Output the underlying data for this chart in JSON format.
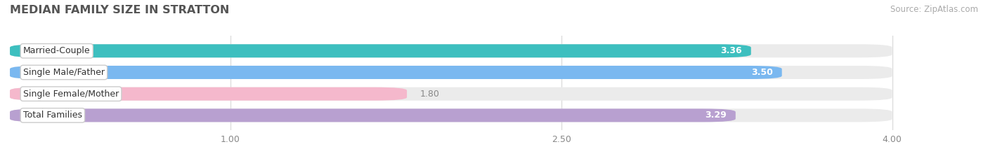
{
  "title": "MEDIAN FAMILY SIZE IN STRATTON",
  "source": "Source: ZipAtlas.com",
  "categories": [
    "Married-Couple",
    "Single Male/Father",
    "Single Female/Mother",
    "Total Families"
  ],
  "values": [
    3.36,
    3.5,
    1.8,
    3.29
  ],
  "bar_colors": [
    "#3dbfbf",
    "#7ab8f0",
    "#f5b8cc",
    "#b8a0d0"
  ],
  "label_colors": [
    "white",
    "white",
    "#888888",
    "white"
  ],
  "xlim_min": 0.0,
  "xlim_max": 4.3,
  "data_min": 0.0,
  "data_max": 4.0,
  "xticks": [
    1.0,
    2.5,
    4.0
  ],
  "xtick_labels": [
    "1.00",
    "2.50",
    "4.00"
  ],
  "bar_height": 0.62,
  "background_color": "#ffffff",
  "bar_bg_color": "#ebebeb",
  "title_color": "#555555",
  "source_color": "#aaaaaa",
  "label_font_size": 9.0,
  "title_font_size": 11.5,
  "source_font_size": 8.5,
  "grid_color": "#dddddd",
  "rounding_size": 0.15
}
